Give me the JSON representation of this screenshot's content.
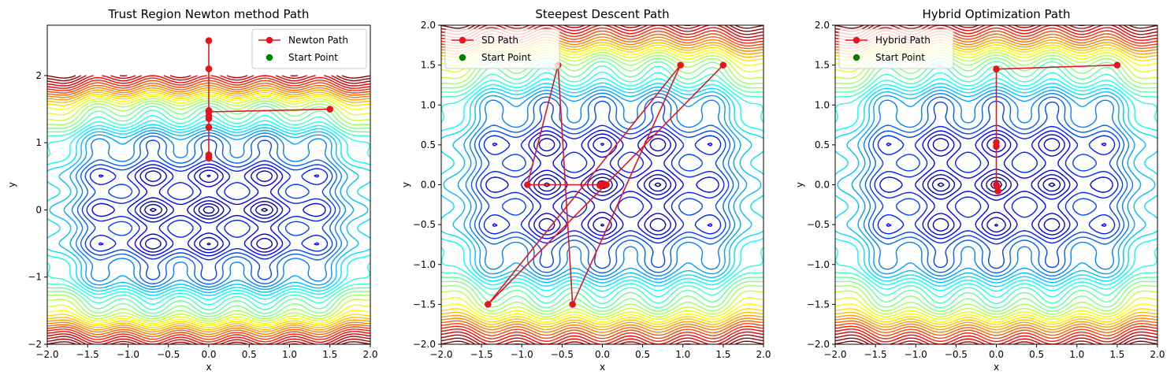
{
  "chart_data": [
    {
      "type": "line",
      "title": "Trust Region Newton method Path",
      "xlabel": "x",
      "ylabel": "y",
      "xlim": [
        -2,
        2
      ],
      "ylim": [
        -2,
        2.75
      ],
      "xticks": [
        -2.0,
        -1.5,
        -1.0,
        -0.5,
        0.0,
        0.5,
        1.0,
        1.5,
        2.0
      ],
      "xtick_labels": [
        "−2.0",
        "−1.5",
        "−1.0",
        "−0.5",
        "0.0",
        "0.5",
        "1.0",
        "1.5",
        "2.0"
      ],
      "yticks": [
        -2,
        -1,
        0,
        1,
        2
      ],
      "ytick_labels": [
        "−2",
        "−1",
        "0",
        "1",
        "2"
      ],
      "legend_position": "top-right",
      "grid": false,
      "background": "contour plot of objective function over x,y in [-2,2]",
      "series": [
        {
          "name": "Newton Path",
          "color": "#e8141c",
          "x": [
            1.5,
            0.0,
            0.0,
            0.0,
            0.0,
            0.0,
            0.0,
            0.0,
            0.0,
            0.0,
            0.0
          ],
          "y": [
            1.5,
            1.46,
            1.36,
            1.23,
            2.1,
            2.52,
            1.48,
            1.4,
            0.82,
            0.79,
            0.77
          ]
        },
        {
          "name": "Start Point",
          "color": "#008000",
          "x": [
            1.5
          ],
          "y": [
            1.5
          ]
        }
      ]
    },
    {
      "type": "line",
      "title": "Steepest Descent Path",
      "xlabel": "x",
      "ylabel": "y",
      "xlim": [
        -2,
        2
      ],
      "ylim": [
        -2,
        2
      ],
      "xticks": [
        -2.0,
        -1.5,
        -1.0,
        -0.5,
        0.0,
        0.5,
        1.0,
        1.5,
        2.0
      ],
      "xtick_labels": [
        "−2.0",
        "−1.5",
        "−1.0",
        "−0.5",
        "0.0",
        "0.5",
        "1.0",
        "1.5",
        "2.0"
      ],
      "yticks": [
        -2.0,
        -1.5,
        -1.0,
        -0.5,
        0.0,
        0.5,
        1.0,
        1.5,
        2.0
      ],
      "ytick_labels": [
        "−2.0",
        "−1.5",
        "−1.0",
        "−0.5",
        "0.0",
        "0.5",
        "1.0",
        "1.5",
        "2.0"
      ],
      "legend_position": "top-left",
      "grid": false,
      "background": "contour plot of objective function over x,y in [-2,2]",
      "series": [
        {
          "name": "SD Path",
          "color": "#e8141c",
          "x": [
            1.5,
            -1.42,
            0.97,
            -0.37,
            -0.55,
            -0.93,
            0.05,
            0.0,
            -0.03,
            0.02,
            0.0
          ],
          "y": [
            1.5,
            -1.5,
            1.5,
            -1.5,
            1.5,
            0.0,
            0.0,
            0.0,
            -0.01,
            0.01,
            0.0
          ]
        },
        {
          "name": "Start Point",
          "color": "#008000",
          "x": [
            1.5
          ],
          "y": [
            1.5
          ]
        }
      ]
    },
    {
      "type": "line",
      "title": "Hybrid Optimization Path",
      "xlabel": "x",
      "ylabel": "y",
      "xlim": [
        -2,
        2
      ],
      "ylim": [
        -2,
        2
      ],
      "xticks": [
        -2.0,
        -1.5,
        -1.0,
        -0.5,
        0.0,
        0.5,
        1.0,
        1.5,
        2.0
      ],
      "xtick_labels": [
        "−2.0",
        "−1.5",
        "−1.0",
        "−0.5",
        "0.0",
        "0.5",
        "1.0",
        "1.5",
        "2.0"
      ],
      "yticks": [
        -2.0,
        -1.5,
        -1.0,
        -0.5,
        0.0,
        0.5,
        1.0,
        1.5,
        2.0
      ],
      "ytick_labels": [
        "−2.0",
        "−1.5",
        "−1.0",
        "−0.5",
        "0.0",
        "0.5",
        "1.0",
        "1.5",
        "2.0"
      ],
      "legend_position": "top-left",
      "grid": false,
      "background": "contour plot of objective function over x,y in [-2,2]",
      "series": [
        {
          "name": "Hybrid Path",
          "color": "#e8141c",
          "x": [
            1.5,
            0.0,
            0.0,
            0.0,
            0.0,
            0.01,
            0.02
          ],
          "y": [
            1.5,
            1.45,
            0.53,
            0.48,
            0.0,
            -0.02,
            -0.08
          ]
        },
        {
          "name": "Start Point",
          "color": "#008000",
          "x": [
            1.5
          ],
          "y": [
            1.5
          ]
        }
      ]
    }
  ]
}
